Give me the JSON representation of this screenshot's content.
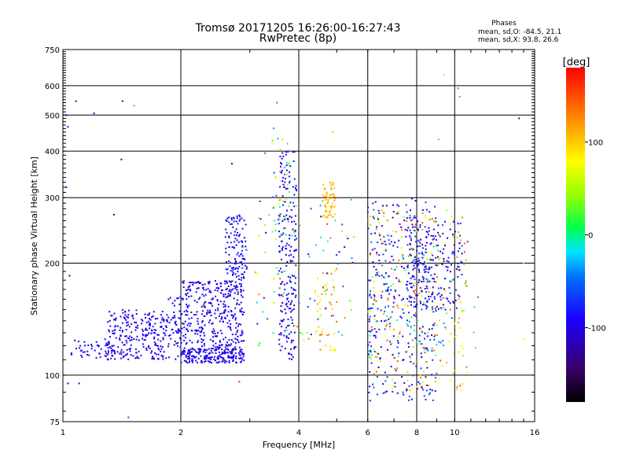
{
  "chart_data": {
    "type": "scatter",
    "title": "Tromsø 20171205 16:26:00-16:27:43",
    "subtitle": "RwPretec (8p)",
    "xlabel": "Frequency [MHz]",
    "ylabel": "Stationary phase Virtual Height [km]",
    "x_scale": "log",
    "y_scale": "log",
    "xlim": [
      1,
      16
    ],
    "ylim": [
      75,
      750
    ],
    "x_ticks": [
      1,
      2,
      4,
      6,
      8,
      10,
      16
    ],
    "x_tick_labels": [
      "1",
      "2",
      "4",
      "6",
      "8",
      "10",
      "16"
    ],
    "y_ticks": [
      75,
      100,
      200,
      300,
      400,
      500,
      600,
      750
    ],
    "y_tick_labels": [
      "75",
      "100",
      "200",
      "300",
      "400",
      "500",
      "600",
      "750"
    ],
    "grid": true,
    "phases_info": {
      "title": "Phases",
      "line_o": "mean, sd,O: -84.5, 21.1",
      "line_x": "mean, sd,X:  93.8, 26.6"
    },
    "colorbar": {
      "label": "[deg]",
      "range": [
        -180,
        180
      ],
      "ticks": [
        -100,
        0,
        100
      ],
      "tick_labels": [
        "-100",
        "0",
        "100"
      ]
    },
    "clusters": [
      {
        "f": [
          1.05,
          1.35
        ],
        "h": [
          110,
          125
        ],
        "phase": [
          -100,
          -80
        ],
        "n": 50
      },
      {
        "f": [
          1.3,
          1.85
        ],
        "h": [
          110,
          150
        ],
        "phase": [
          -110,
          -80
        ],
        "n": 250
      },
      {
        "f": [
          1.85,
          2.0
        ],
        "h": [
          110,
          165
        ],
        "phase": [
          -110,
          -80
        ],
        "n": 50
      },
      {
        "f": [
          2.0,
          2.9
        ],
        "h": [
          108,
          118
        ],
        "phase": [
          -110,
          -80
        ],
        "n": 220
      },
      {
        "f": [
          2.0,
          2.9
        ],
        "h": [
          118,
          180
        ],
        "phase": [
          -110,
          -80
        ],
        "n": 360
      },
      {
        "f": [
          2.6,
          2.95
        ],
        "h": [
          180,
          270
        ],
        "phase": [
          -110,
          -70
        ],
        "n": 120
      },
      {
        "f": [
          3.55,
          3.95
        ],
        "h": [
          110,
          400
        ],
        "phase": [
          -110,
          -80
        ],
        "n": 200
      },
      {
        "f": [
          3.4,
          3.9
        ],
        "h": [
          220,
          470
        ],
        "phase": [
          -60,
          120
        ],
        "n": 40
      },
      {
        "f": [
          4.6,
          4.95
        ],
        "h": [
          265,
          330
        ],
        "phase": [
          90,
          120
        ],
        "n": 60
      },
      {
        "f": [
          4.4,
          5.0
        ],
        "h": [
          115,
          200
        ],
        "phase": [
          40,
          150
        ],
        "n": 50
      },
      {
        "f": [
          3.1,
          5.6
        ],
        "h": [
          120,
          300
        ],
        "phase": [
          -120,
          160
        ],
        "n": 100
      },
      {
        "f": [
          6.0,
          9.0
        ],
        "h": [
          85,
          300
        ],
        "phase": [
          -120,
          -50
        ],
        "n": 340
      },
      {
        "f": [
          6.0,
          10.8
        ],
        "h": [
          90,
          280
        ],
        "phase": [
          40,
          160
        ],
        "n": 220
      },
      {
        "f": [
          7.5,
          10.5
        ],
        "h": [
          150,
          260
        ],
        "phase": [
          -130,
          -60
        ],
        "n": 200
      },
      {
        "f": [
          6.0,
          11.5
        ],
        "h": [
          110,
          240
        ],
        "phase": [
          -70,
          40
        ],
        "n": 70
      }
    ],
    "points": [
      {
        "f": 1.02,
        "h": 500,
        "phase": -100
      },
      {
        "f": 1.03,
        "h": 465,
        "phase": -100
      },
      {
        "f": 1.08,
        "h": 545,
        "phase": -100
      },
      {
        "f": 1.2,
        "h": 505,
        "phase": -110
      },
      {
        "f": 1.42,
        "h": 545,
        "phase": -100
      },
      {
        "f": 1.52,
        "h": 530,
        "phase": 130
      },
      {
        "f": 1.41,
        "h": 380,
        "phase": -150
      },
      {
        "f": 1.35,
        "h": 270,
        "phase": -150
      },
      {
        "f": 1.02,
        "h": 320,
        "phase": -80
      },
      {
        "f": 1.04,
        "h": 185,
        "phase": -120
      },
      {
        "f": 1.03,
        "h": 95,
        "phase": -120
      },
      {
        "f": 1.1,
        "h": 95,
        "phase": -100
      },
      {
        "f": 1.47,
        "h": 77,
        "phase": -60
      },
      {
        "f": 3.52,
        "h": 540,
        "phase": -40
      },
      {
        "f": 3.28,
        "h": 395,
        "phase": 160
      },
      {
        "f": 2.7,
        "h": 370,
        "phase": -120
      },
      {
        "f": 9.4,
        "h": 640,
        "phase": 100
      },
      {
        "f": 10.2,
        "h": 590,
        "phase": 150
      },
      {
        "f": 10.3,
        "h": 560,
        "phase": 130
      },
      {
        "f": 14.6,
        "h": 490,
        "phase": -130
      },
      {
        "f": 15.0,
        "h": 200,
        "phase": 40
      },
      {
        "f": 15.0,
        "h": 125,
        "phase": 80
      },
      {
        "f": 2.82,
        "h": 96,
        "phase": 160
      },
      {
        "f": 4.88,
        "h": 450,
        "phase": 100
      },
      {
        "f": 9.1,
        "h": 430,
        "phase": 120
      }
    ]
  }
}
